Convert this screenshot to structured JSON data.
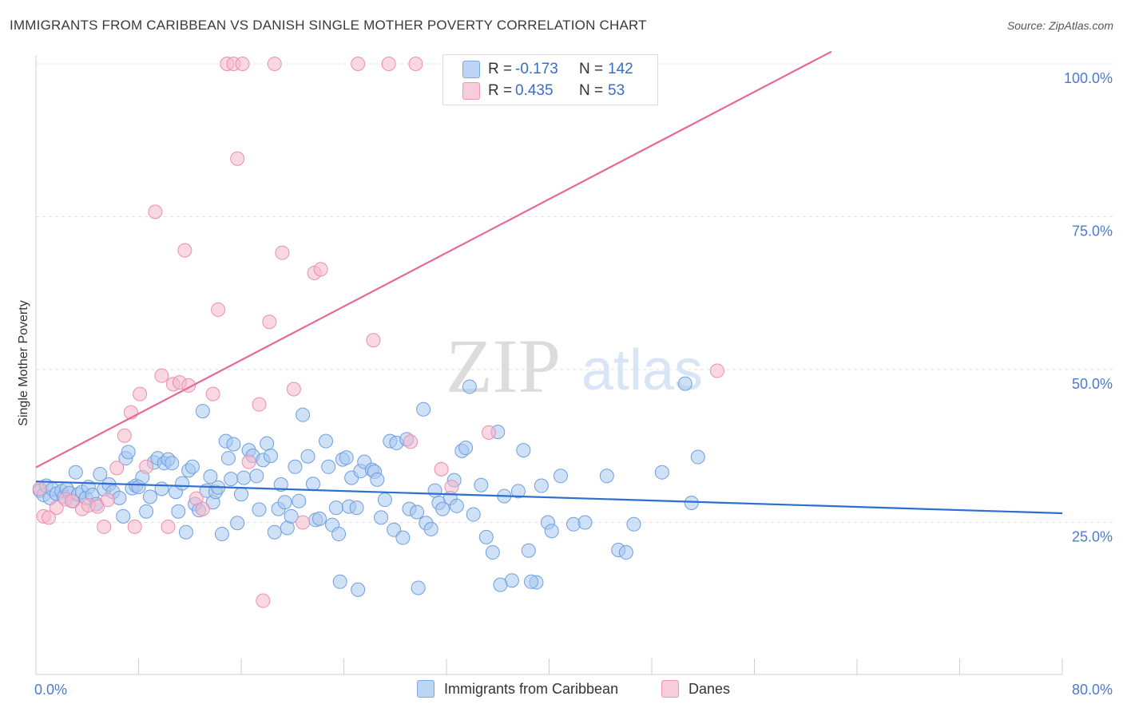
{
  "header": {
    "title": "IMMIGRANTS FROM CARIBBEAN VS DANISH SINGLE MOTHER POVERTY CORRELATION CHART",
    "source": "Source: ZipAtlas.com"
  },
  "watermark": {
    "zip": "ZIP",
    "atlas": "atlas"
  },
  "legend": {
    "rows": [
      {
        "r_label": "R =",
        "r_value": "-0.173",
        "n_label": "N =",
        "n_value": "142",
        "color": "#a8c8f0"
      },
      {
        "r_label": "R =",
        "r_value": "0.435",
        "n_label": "N =",
        "n_value": "53",
        "color": "#f6b8cb"
      }
    ]
  },
  "bottom_legend": [
    {
      "label": "Immigrants from Caribbean",
      "color": "#a8c8f0"
    },
    {
      "label": "Danes",
      "color": "#f6b8cb"
    }
  ],
  "chart_data": {
    "type": "scatter",
    "ylabel": "Single Mother Poverty",
    "xlabel": "",
    "xlim": [
      0,
      80
    ],
    "ylim": [
      0,
      102
    ],
    "x_tick_labels": [
      {
        "value": 0,
        "label": "0.0%"
      },
      {
        "value": 80,
        "label": "80.0%"
      }
    ],
    "y_tick_labels": [
      {
        "value": 25,
        "label": "25.0%"
      },
      {
        "value": 50,
        "label": "50.0%"
      },
      {
        "value": 75,
        "label": "75.0%"
      },
      {
        "value": 100,
        "label": "100.0%"
      }
    ],
    "grid": "horizontal dashed",
    "legend_position": "top-center",
    "series": [
      {
        "name": "Immigrants from Caribbean",
        "color": "#a8c8f0",
        "stroke": "#6f9ee0",
        "trend": {
          "x": [
            0,
            80
          ],
          "y": [
            31.7,
            26.5
          ],
          "color": "#2d6fd0"
        },
        "points": [
          [
            0.3,
            30.2
          ],
          [
            0.6,
            29.5
          ],
          [
            0.8,
            31.0
          ],
          [
            1.1,
            29.0
          ],
          [
            1.3,
            30.4
          ],
          [
            1.6,
            29.7
          ],
          [
            2.0,
            30.1
          ],
          [
            2.2,
            29.2
          ],
          [
            2.4,
            30.5
          ],
          [
            2.6,
            29.8
          ],
          [
            2.9,
            28.5
          ],
          [
            3.1,
            33.2
          ],
          [
            3.3,
            29.6
          ],
          [
            3.6,
            30.0
          ],
          [
            3.9,
            29.0
          ],
          [
            4.1,
            30.8
          ],
          [
            4.4,
            29.5
          ],
          [
            4.7,
            28.0
          ],
          [
            5.0,
            32.9
          ],
          [
            5.3,
            30.4
          ],
          [
            5.7,
            31.2
          ],
          [
            6.0,
            30.0
          ],
          [
            6.5,
            29.0
          ],
          [
            6.8,
            26.0
          ],
          [
            7.0,
            35.5
          ],
          [
            7.2,
            36.5
          ],
          [
            7.5,
            30.6
          ],
          [
            7.8,
            31.0
          ],
          [
            8.0,
            30.8
          ],
          [
            8.3,
            32.4
          ],
          [
            8.6,
            26.8
          ],
          [
            8.9,
            29.2
          ],
          [
            9.2,
            34.8
          ],
          [
            9.5,
            35.5
          ],
          [
            9.8,
            30.5
          ],
          [
            10.0,
            34.7
          ],
          [
            10.3,
            35.3
          ],
          [
            10.6,
            34.7
          ],
          [
            10.9,
            30.0
          ],
          [
            11.1,
            26.8
          ],
          [
            11.4,
            31.4
          ],
          [
            11.7,
            23.4
          ],
          [
            11.9,
            33.5
          ],
          [
            12.2,
            34.1
          ],
          [
            12.4,
            28.0
          ],
          [
            12.7,
            27.0
          ],
          [
            13.0,
            43.2
          ],
          [
            13.3,
            30.2
          ],
          [
            13.6,
            32.5
          ],
          [
            13.8,
            28.3
          ],
          [
            14.0,
            30.0
          ],
          [
            14.2,
            30.7
          ],
          [
            14.5,
            23.1
          ],
          [
            14.8,
            38.3
          ],
          [
            15.0,
            35.5
          ],
          [
            15.2,
            32.1
          ],
          [
            15.4,
            37.8
          ],
          [
            15.7,
            24.9
          ],
          [
            16.0,
            29.6
          ],
          [
            16.2,
            32.3
          ],
          [
            16.6,
            36.8
          ],
          [
            16.9,
            35.9
          ],
          [
            17.2,
            32.6
          ],
          [
            17.4,
            27.1
          ],
          [
            17.7,
            35.2
          ],
          [
            18.0,
            37.9
          ],
          [
            18.3,
            35.9
          ],
          [
            18.6,
            23.4
          ],
          [
            18.9,
            27.2
          ],
          [
            19.1,
            31.2
          ],
          [
            19.4,
            28.3
          ],
          [
            19.6,
            24.1
          ],
          [
            19.9,
            26.0
          ],
          [
            20.2,
            34.1
          ],
          [
            20.5,
            28.5
          ],
          [
            20.8,
            42.6
          ],
          [
            21.2,
            35.8
          ],
          [
            21.6,
            31.3
          ],
          [
            21.8,
            25.4
          ],
          [
            22.1,
            25.6
          ],
          [
            22.6,
            38.3
          ],
          [
            22.8,
            34.1
          ],
          [
            23.1,
            24.6
          ],
          [
            23.4,
            27.4
          ],
          [
            23.6,
            23.1
          ],
          [
            23.9,
            35.3
          ],
          [
            24.2,
            35.6
          ],
          [
            24.4,
            27.6
          ],
          [
            24.6,
            32.3
          ],
          [
            25.0,
            27.4
          ],
          [
            25.3,
            33.4
          ],
          [
            25.6,
            34.9
          ],
          [
            26.2,
            33.6
          ],
          [
            26.4,
            33.3
          ],
          [
            26.6,
            32.0
          ],
          [
            26.9,
            25.8
          ],
          [
            27.2,
            28.7
          ],
          [
            27.6,
            38.3
          ],
          [
            27.9,
            23.8
          ],
          [
            28.1,
            38.0
          ],
          [
            28.6,
            22.5
          ],
          [
            28.9,
            38.6
          ],
          [
            29.1,
            27.2
          ],
          [
            29.7,
            26.7
          ],
          [
            30.2,
            43.5
          ],
          [
            30.4,
            24.9
          ],
          [
            30.8,
            23.9
          ],
          [
            31.1,
            30.2
          ],
          [
            31.4,
            28.2
          ],
          [
            31.7,
            27.2
          ],
          [
            32.3,
            29.0
          ],
          [
            32.6,
            31.9
          ],
          [
            32.8,
            27.7
          ],
          [
            33.2,
            36.7
          ],
          [
            33.5,
            37.2
          ],
          [
            33.8,
            47.2
          ],
          [
            34.1,
            26.3
          ],
          [
            34.7,
            31.1
          ],
          [
            35.1,
            22.6
          ],
          [
            35.6,
            20.1
          ],
          [
            36.0,
            39.8
          ],
          [
            36.5,
            29.3
          ],
          [
            37.1,
            15.5
          ],
          [
            37.6,
            30.1
          ],
          [
            38.0,
            36.8
          ],
          [
            38.4,
            20.4
          ],
          [
            39.0,
            15.2
          ],
          [
            39.4,
            31.0
          ],
          [
            39.9,
            25.0
          ],
          [
            40.2,
            23.6
          ],
          [
            40.9,
            32.6
          ],
          [
            41.9,
            24.7
          ],
          [
            42.8,
            25.0
          ],
          [
            44.5,
            32.6
          ],
          [
            45.4,
            20.5
          ],
          [
            46.0,
            20.1
          ],
          [
            46.6,
            24.7
          ],
          [
            48.8,
            33.2
          ],
          [
            50.6,
            47.7
          ],
          [
            51.1,
            28.2
          ],
          [
            51.6,
            35.7
          ],
          [
            25.1,
            14.0
          ],
          [
            29.8,
            14.3
          ],
          [
            36.2,
            14.8
          ],
          [
            38.6,
            15.3
          ],
          [
            23.7,
            15.3
          ]
        ]
      },
      {
        "name": "Danes",
        "color": "#f6b8cb",
        "stroke": "#ec8fae",
        "trend": {
          "x": [
            0,
            62
          ],
          "y": [
            34.0,
            102.0
          ],
          "color": "#e8679a"
        },
        "points": [
          [
            0.3,
            30.5
          ],
          [
            0.6,
            26.0
          ],
          [
            1.0,
            25.8
          ],
          [
            1.6,
            27.4
          ],
          [
            2.3,
            28.8
          ],
          [
            2.8,
            28.5
          ],
          [
            3.6,
            27.2
          ],
          [
            4.1,
            27.8
          ],
          [
            4.8,
            27.6
          ],
          [
            5.3,
            24.3
          ],
          [
            5.6,
            28.7
          ],
          [
            6.3,
            33.9
          ],
          [
            6.9,
            39.2
          ],
          [
            7.4,
            43.0
          ],
          [
            7.7,
            24.3
          ],
          [
            8.1,
            46.0
          ],
          [
            8.6,
            34.1
          ],
          [
            9.3,
            75.8
          ],
          [
            9.8,
            49.0
          ],
          [
            10.3,
            24.3
          ],
          [
            10.7,
            47.6
          ],
          [
            11.2,
            47.9
          ],
          [
            11.6,
            69.5
          ],
          [
            11.9,
            47.4
          ],
          [
            12.5,
            28.9
          ],
          [
            13.0,
            27.2
          ],
          [
            13.8,
            46.0
          ],
          [
            14.2,
            59.8
          ],
          [
            14.9,
            100
          ],
          [
            15.4,
            100
          ],
          [
            15.7,
            84.5
          ],
          [
            16.1,
            100
          ],
          [
            16.6,
            34.9
          ],
          [
            17.4,
            44.3
          ],
          [
            17.7,
            12.2
          ],
          [
            18.2,
            57.8
          ],
          [
            18.6,
            100
          ],
          [
            19.2,
            69.1
          ],
          [
            20.1,
            46.8
          ],
          [
            20.8,
            25.0
          ],
          [
            21.7,
            65.8
          ],
          [
            22.2,
            66.4
          ],
          [
            25.1,
            100
          ],
          [
            26.3,
            54.8
          ],
          [
            27.5,
            100
          ],
          [
            29.2,
            38.2
          ],
          [
            29.6,
            100
          ],
          [
            32.4,
            30.8
          ],
          [
            35.3,
            39.7
          ],
          [
            38.0,
            100
          ],
          [
            31.6,
            33.7
          ],
          [
            39.4,
            100
          ],
          [
            53.1,
            49.8
          ]
        ]
      }
    ]
  }
}
